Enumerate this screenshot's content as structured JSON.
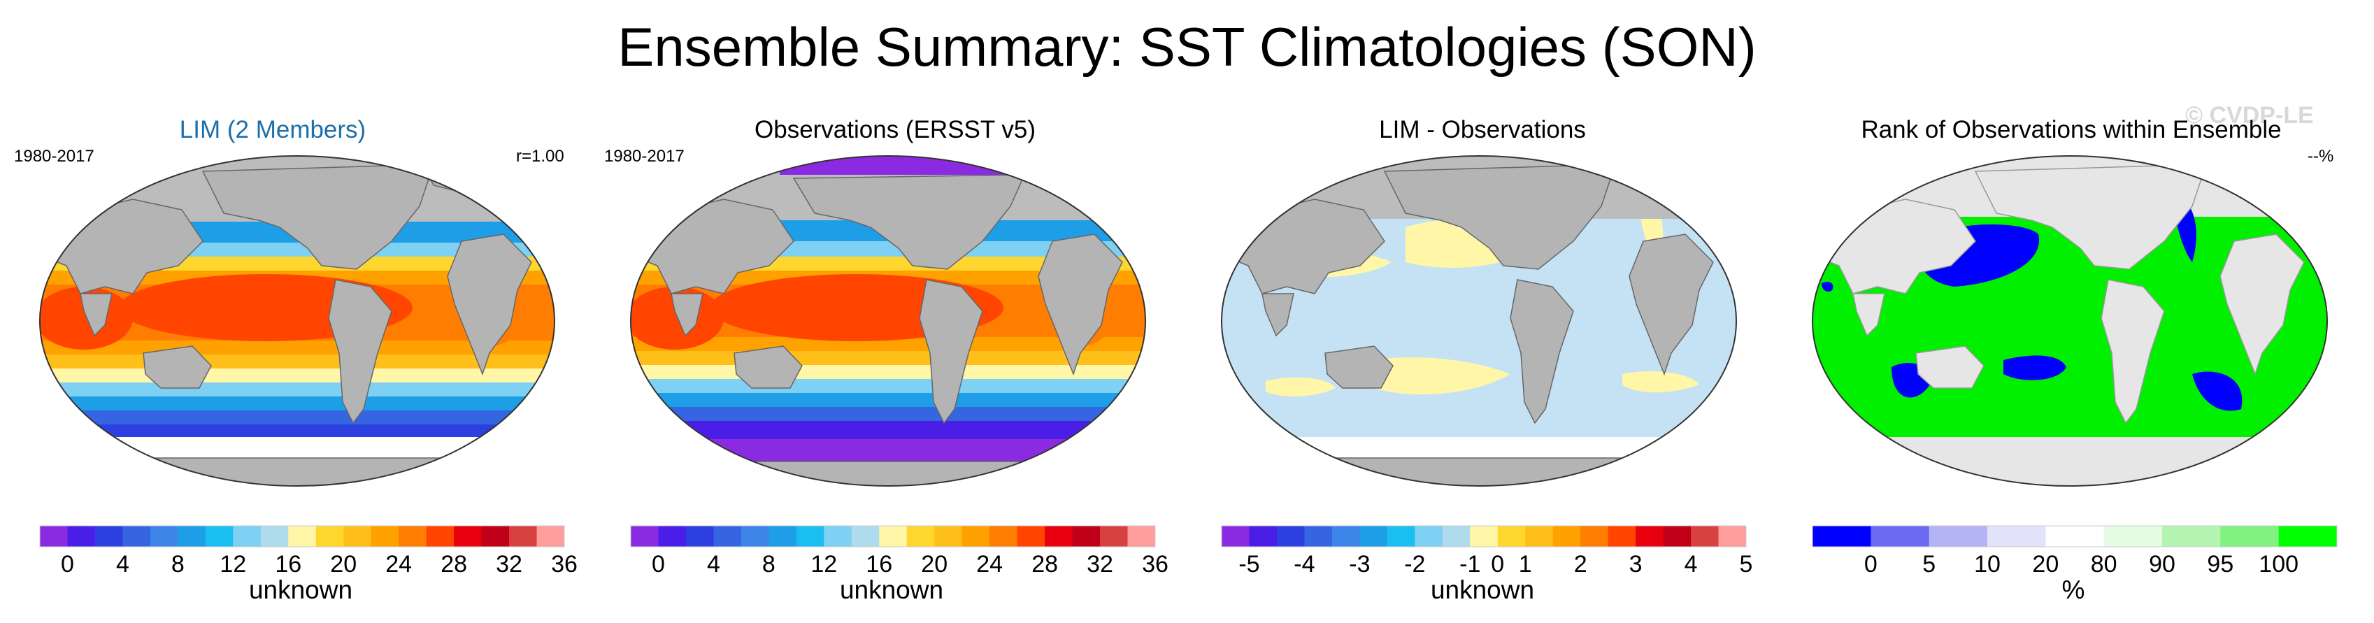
{
  "title": "Ensemble Summary: SST Climatologies (SON)",
  "watermark": "© CVDP-LE",
  "chart_data": [
    {
      "type": "heatmap",
      "title": "LIM (2 Members)",
      "period": "1980-2017",
      "stat": "r=1.00",
      "colorbar": {
        "colors": [
          "#8a2be2",
          "#4b1ee8",
          "#2d3fe0",
          "#3565e0",
          "#3d85e8",
          "#1f9ee8",
          "#18bff0",
          "#7ed1f2",
          "#aedcec",
          "#fff6a8",
          "#ffd62e",
          "#ffbf1a",
          "#ffa200",
          "#ff7d00",
          "#ff4500",
          "#e8000f",
          "#c00018",
          "#d94040",
          "#ff9c9c"
        ],
        "ticks": [
          "0",
          "4",
          "8",
          "12",
          "16",
          "20",
          "24",
          "28",
          "32",
          "36"
        ],
        "label": "unknown"
      }
    },
    {
      "type": "heatmap",
      "title": "Observations (ERSST v5)",
      "period": "1980-2017",
      "colorbar": {
        "colors": [
          "#8a2be2",
          "#4b1ee8",
          "#2d3fe0",
          "#3565e0",
          "#3d85e8",
          "#1f9ee8",
          "#18bff0",
          "#7ed1f2",
          "#aedcec",
          "#fff6a8",
          "#ffd62e",
          "#ffbf1a",
          "#ffa200",
          "#ff7d00",
          "#ff4500",
          "#e8000f",
          "#c00018",
          "#d94040",
          "#ff9c9c"
        ],
        "ticks": [
          "0",
          "4",
          "8",
          "12",
          "16",
          "20",
          "24",
          "28",
          "32",
          "36"
        ],
        "label": "unknown"
      }
    },
    {
      "type": "heatmap",
      "title": "LIM - Observations",
      "colorbar": {
        "colors": [
          "#8a2be2",
          "#4b1ee8",
          "#2d3fe0",
          "#3565e0",
          "#3d85e8",
          "#1f9ee8",
          "#18bff0",
          "#7ed1f2",
          "#aedcec",
          "#fff6a8",
          "#ffd62e",
          "#ffbf1a",
          "#ffa200",
          "#ff7d00",
          "#ff4500",
          "#e8000f",
          "#c00018",
          "#d94040",
          "#ff9c9c"
        ],
        "ticks": [
          "-5",
          "-4",
          "-3",
          "-2",
          "-1",
          "0",
          "1",
          "2",
          "3",
          "4",
          "5"
        ],
        "label": "unknown"
      }
    },
    {
      "type": "heatmap",
      "title": "Rank of Observations within Ensemble",
      "stat": "--%",
      "colorbar": {
        "colors": [
          "#0000ff",
          "#6a6af2",
          "#b4b4f5",
          "#e2e2fb",
          "#ffffff",
          "#e4fbe4",
          "#b4f5b4",
          "#7ff27f",
          "#00ff00"
        ],
        "ticks": [
          "0",
          "5",
          "10",
          "20",
          "80",
          "90",
          "95",
          "100"
        ],
        "label": "%"
      }
    }
  ]
}
